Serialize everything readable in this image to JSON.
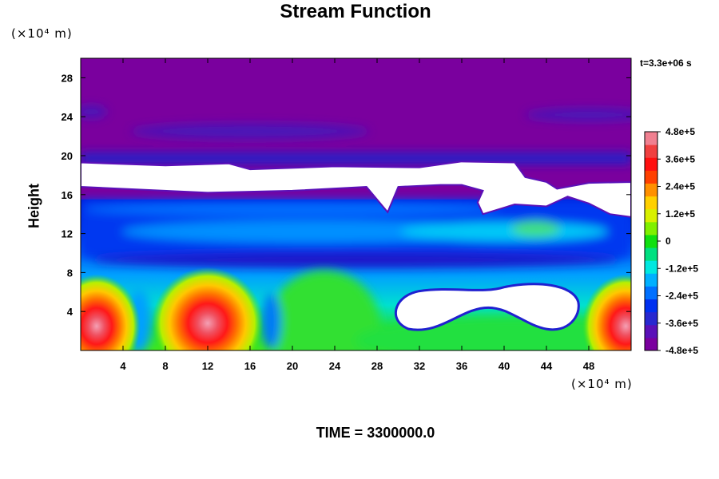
{
  "chart_data": {
    "type": "heatmap",
    "title": "Stream Function",
    "ylabel": "Height",
    "xlabel": "",
    "y_unit": "(×10⁴ m)",
    "x_unit": "(×10⁴ m)",
    "timestamp": "t=3.3e+06 s",
    "footer": "TIME = 3300000.0",
    "xlim": [
      0,
      52
    ],
    "ylim": [
      0,
      30
    ],
    "x_ticks": [
      4,
      8,
      12,
      16,
      20,
      24,
      28,
      32,
      36,
      40,
      44,
      48
    ],
    "y_ticks": [
      4,
      8,
      12,
      16,
      20,
      24,
      28
    ],
    "colorbar": {
      "min": -480000,
      "max": 480000,
      "tick_values": [
        480000,
        360000,
        240000,
        120000,
        0,
        -120000,
        -240000,
        -360000,
        -480000
      ],
      "tick_labels": [
        "4.8e+5",
        "3.6e+5",
        "2.4e+5",
        "1.2e+5",
        "0",
        "-1.2e+5",
        "-2.4e+5",
        "-3.6e+5",
        "-4.8e+5"
      ],
      "colors": [
        "#7a009e",
        "#5a10b8",
        "#2828d0",
        "#0030f0",
        "#0070ff",
        "#00b0ff",
        "#00e8e0",
        "#00e080",
        "#10e010",
        "#80f000",
        "#d8f000",
        "#ffd000",
        "#ff9000",
        "#ff4000",
        "#ff1010",
        "#f04040",
        "#f08090"
      ]
    },
    "features": [
      {
        "kind": "high",
        "x": 1.5,
        "y": 2.5,
        "value": 460000
      },
      {
        "kind": "high",
        "x": 12,
        "y": 2.8,
        "value": 480000
      },
      {
        "kind": "high",
        "x": 51.5,
        "y": 2.5,
        "value": 440000
      },
      {
        "kind": "moderate",
        "x": 23,
        "y": 3,
        "value": 50000
      },
      {
        "kind": "moderate",
        "x": 43,
        "y": 2,
        "value": 30000
      },
      {
        "kind": "out_of_range_band",
        "y_range": [
          16.5,
          19.5
        ],
        "x_range": [
          0,
          52
        ]
      },
      {
        "kind": "out_of_range_region",
        "x_range": [
          29.5,
          47
        ],
        "y_range": [
          2,
          6
        ]
      },
      {
        "kind": "low_plateau",
        "y_range": [
          19.5,
          30
        ],
        "value": -480000
      }
    ]
  }
}
